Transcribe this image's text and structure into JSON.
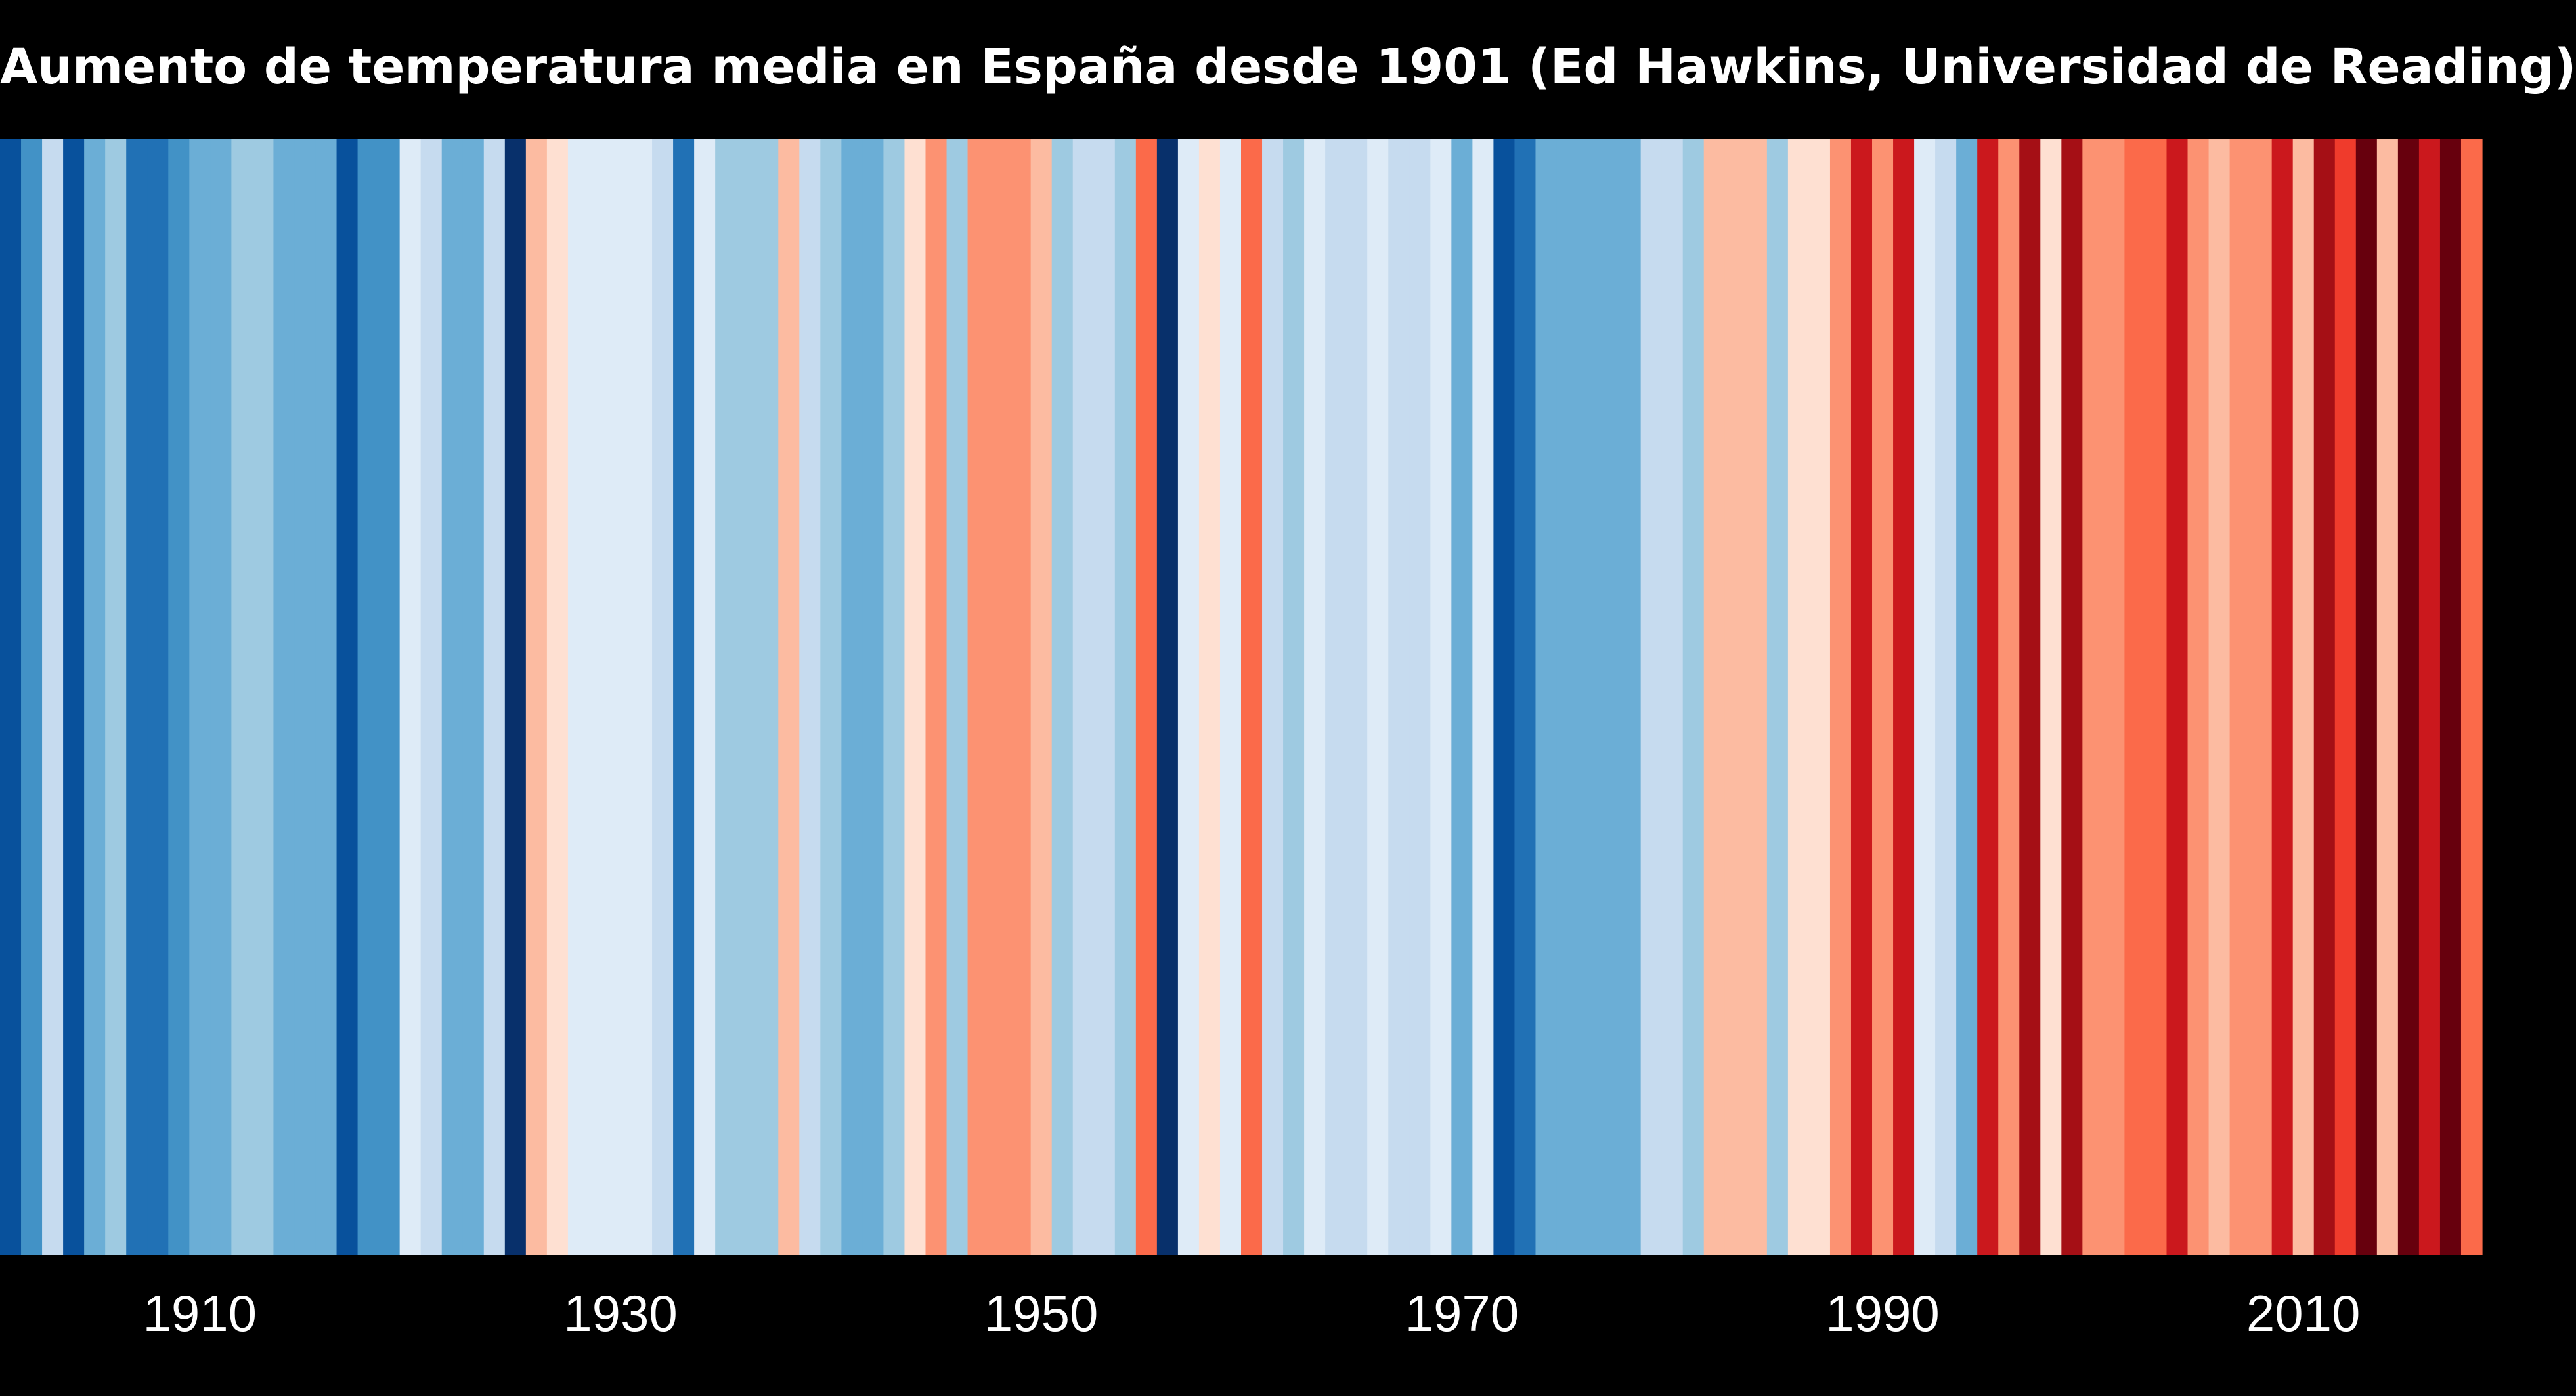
{
  "chart_data": {
    "type": "heatmap",
    "title": "Aumento de temperatura media en España desde 1901 (Ed Hawkins, Universidad de Reading)",
    "x_start_year": 1901,
    "x_end_year": 2018,
    "x_ticks": [
      "1910",
      "1930",
      "1950",
      "1970",
      "1990",
      "2010"
    ],
    "palette": [
      "#08306b",
      "#08519c",
      "#2171b5",
      "#4292c6",
      "#6baed6",
      "#9ecae1",
      "#c6dbef",
      "#deebf7",
      "#fee0d2",
      "#fcbba1",
      "#fc9272",
      "#fb6a4a",
      "#ef3b2c",
      "#cb181d",
      "#a50f15",
      "#67000d"
    ],
    "color_scale": "blue = colder year, red = warmer year",
    "years": [
      1901,
      1902,
      1903,
      1904,
      1905,
      1906,
      1907,
      1908,
      1909,
      1910,
      1911,
      1912,
      1913,
      1914,
      1915,
      1916,
      1917,
      1918,
      1919,
      1920,
      1921,
      1922,
      1923,
      1924,
      1925,
      1926,
      1927,
      1928,
      1929,
      1930,
      1931,
      1932,
      1933,
      1934,
      1935,
      1936,
      1937,
      1938,
      1939,
      1940,
      1941,
      1942,
      1943,
      1944,
      1945,
      1946,
      1947,
      1948,
      1949,
      1950,
      1951,
      1952,
      1953,
      1954,
      1955,
      1956,
      1957,
      1958,
      1959,
      1960,
      1961,
      1962,
      1963,
      1964,
      1965,
      1966,
      1967,
      1968,
      1969,
      1970,
      1971,
      1972,
      1973,
      1974,
      1975,
      1976,
      1977,
      1978,
      1979,
      1980,
      1981,
      1982,
      1983,
      1984,
      1985,
      1986,
      1987,
      1988,
      1989,
      1990,
      1991,
      1992,
      1993,
      1994,
      1995,
      1996,
      1997,
      1998,
      1999,
      2000,
      2001,
      2002,
      2003,
      2004,
      2005,
      2006,
      2007,
      2008,
      2009,
      2010,
      2011,
      2012,
      2013,
      2014,
      2015,
      2016,
      2017,
      2018
    ],
    "values": [
      1,
      3,
      6,
      1,
      4,
      5,
      2,
      2,
      3,
      4,
      4,
      5,
      5,
      4,
      4,
      4,
      1,
      3,
      3,
      7,
      6,
      4,
      4,
      6,
      0,
      9,
      8,
      7,
      7,
      7,
      7,
      6,
      2,
      7,
      5,
      5,
      5,
      9,
      6,
      5,
      4,
      4,
      5,
      8,
      10,
      5,
      10,
      10,
      10,
      9,
      5,
      6,
      6,
      5,
      11,
      0,
      7,
      8,
      7,
      11,
      6,
      5,
      7,
      6,
      6,
      7,
      6,
      6,
      7,
      4,
      7,
      1,
      2,
      4,
      4,
      4,
      4,
      4,
      6,
      6,
      5,
      9,
      9,
      9,
      5,
      8,
      8,
      10,
      13,
      10,
      13,
      7,
      6,
      4,
      13,
      10,
      14,
      8,
      14,
      10,
      10,
      11,
      11,
      13,
      10,
      9,
      10,
      10,
      13,
      9,
      14,
      12,
      15,
      9,
      15,
      13,
      15,
      11
    ]
  }
}
